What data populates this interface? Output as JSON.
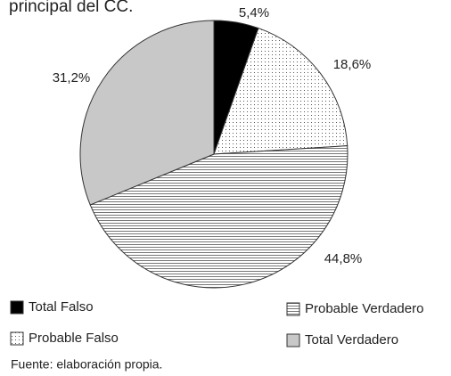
{
  "chart_data": {
    "type": "pie",
    "title": "principal del CC.",
    "categories": [
      "Total Falso",
      "Probable Falso",
      "Probable Verdadero",
      "Total Verdadero"
    ],
    "values": [
      5.4,
      18.6,
      44.8,
      31.2
    ],
    "value_labels": [
      "5,4%",
      "18,6%",
      "44,8%",
      "31,2%"
    ],
    "colors": [
      "#000000",
      "#ffffff",
      "#ffffff",
      "#c8c8c8"
    ],
    "fill_patterns": [
      "solid",
      "dots",
      "hlines",
      "solid"
    ],
    "source": "Fuente: elaboración propia."
  }
}
